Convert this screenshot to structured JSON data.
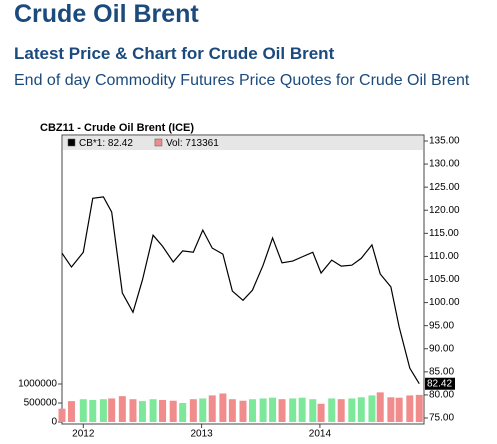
{
  "page": {
    "title": "Crude Oil Brent",
    "subtitle": "Latest Price & Chart for Crude Oil Brent",
    "description": "End of day Commodity Futures Price Quotes for Crude Oil Brent"
  },
  "chart_data": {
    "type": "line",
    "title": "CBZ11 - Crude Oil Brent (ICE)",
    "x": [
      2011.82,
      2011.9,
      2012.0,
      2012.08,
      2012.17,
      2012.24,
      2012.33,
      2012.42,
      2012.5,
      2012.59,
      2012.67,
      2012.76,
      2012.84,
      2012.93,
      2013.01,
      2013.09,
      2013.18,
      2013.26,
      2013.35,
      2013.43,
      2013.52,
      2013.6,
      2013.68,
      2013.77,
      2013.85,
      2013.94,
      2014.01,
      2014.1,
      2014.18,
      2014.27,
      2014.35,
      2014.44,
      2014.51,
      2014.6,
      2014.67,
      2014.76,
      2014.84
    ],
    "series": [
      {
        "name": "CB*1: 82.42",
        "color": "#000000",
        "values": [
          110.7,
          107.7,
          110.9,
          122.6,
          122.9,
          119.6,
          102.1,
          97.9,
          104.9,
          114.6,
          112.2,
          108.8,
          111.2,
          110.9,
          115.7,
          111.8,
          110.5,
          102.5,
          100.5,
          102.7,
          108.1,
          114.0,
          108.6,
          109.0,
          109.9,
          110.9,
          106.4,
          109.2,
          107.9,
          108.1,
          109.6,
          112.5,
          106.2,
          103.4,
          94.7,
          85.8,
          82.42
        ]
      },
      {
        "name": "Vol: 713361",
        "type": "bar",
        "axis": "y2",
        "color": "#f08c8c",
        "up_color": "#7ee89a",
        "values": [
          350000,
          550000,
          600000,
          580000,
          600000,
          620000,
          680000,
          600000,
          550000,
          600000,
          580000,
          560000,
          500000,
          600000,
          620000,
          700000,
          750000,
          600000,
          560000,
          600000,
          620000,
          640000,
          600000,
          620000,
          640000,
          600000,
          480000,
          620000,
          600000,
          620000,
          650000,
          700000,
          780000,
          650000,
          640000,
          700000,
          713361
        ]
      }
    ],
    "last_price": 82.42,
    "xlim": [
      2011.82,
      2014.88
    ],
    "xticks": [
      2012,
      2013,
      2014
    ],
    "ylim": [
      73.7,
      136.3
    ],
    "yticks": [
      {
        "value": 75,
        "label": "75.00"
      },
      {
        "value": 80,
        "label": "80.00"
      },
      {
        "value": 85,
        "label": "85.00"
      },
      {
        "value": 90,
        "label": "90.00"
      },
      {
        "value": 95,
        "label": "95.00"
      },
      {
        "value": 100,
        "label": "100.00"
      },
      {
        "value": 105,
        "label": "105.00"
      },
      {
        "value": 110,
        "label": "110.00"
      },
      {
        "value": 115,
        "label": "115.00"
      },
      {
        "value": 120,
        "label": "120.00"
      },
      {
        "value": 125,
        "label": "125.00"
      },
      {
        "value": 130,
        "label": "130.00"
      },
      {
        "value": 135,
        "label": "135.00"
      }
    ],
    "y2lim": [
      -52600,
      7552600
    ],
    "y2ticks": [
      0,
      500000,
      1000000
    ]
  }
}
